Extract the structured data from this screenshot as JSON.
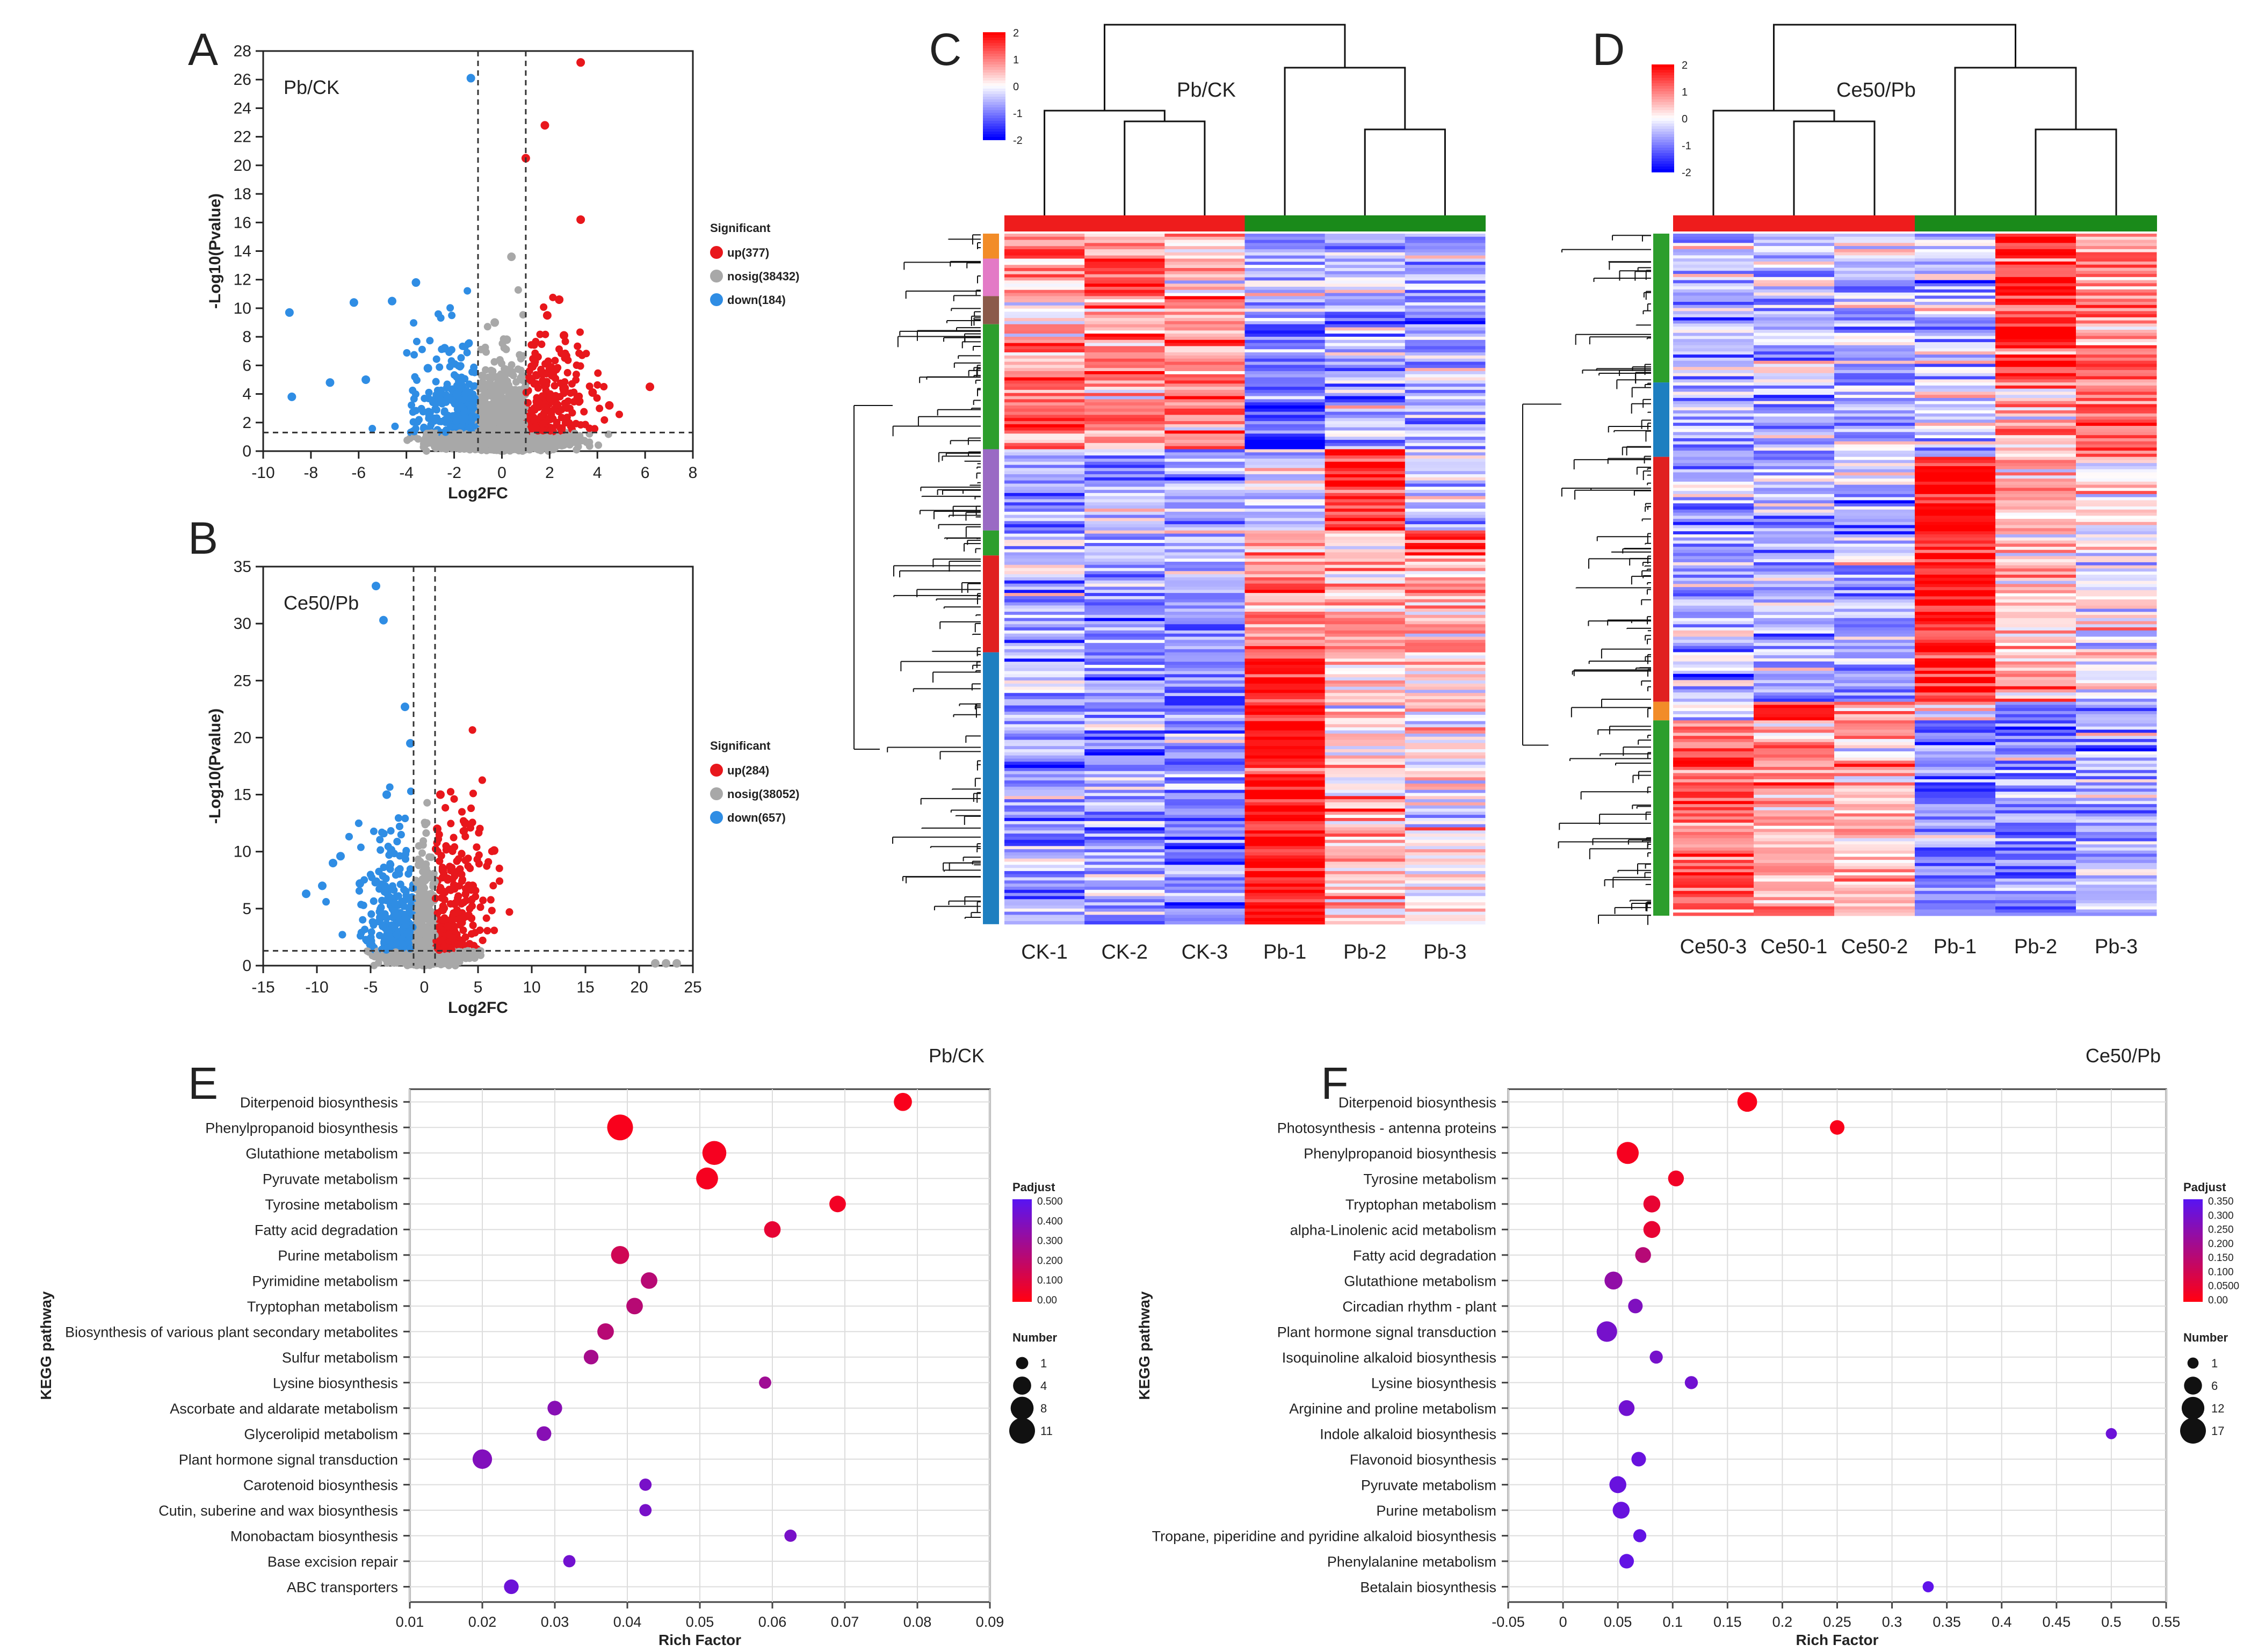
{
  "panels": {
    "A": "A",
    "B": "B",
    "C": "C",
    "D": "D",
    "E": "E",
    "F": "F"
  },
  "colors": {
    "up": "#e8171c",
    "nosig": "#a8a8a8",
    "down": "#2f8de4",
    "heat_high": "#ff0000",
    "heat_mid": "#ffffff",
    "heat_low": "#0000ff",
    "group_red": "#ee1c1c",
    "group_green": "#1a8a1a"
  },
  "chart_data": [
    {
      "id": "A",
      "type": "scatter",
      "subtype": "volcano",
      "title": "Pb/CK",
      "xlabel": "Log2FC",
      "ylabel": "-Log10(Pvalue)",
      "xlim": [
        -10,
        8
      ],
      "ylim": [
        0,
        28
      ],
      "xticks": [
        -10,
        -8,
        -6,
        -4,
        -2,
        0,
        2,
        4,
        6,
        8
      ],
      "yticks": [
        0,
        2,
        4,
        6,
        8,
        10,
        12,
        14,
        16,
        18,
        20,
        22,
        24,
        26,
        28
      ],
      "fc_threshold": 1,
      "p_threshold_line": 1.3,
      "legend_title": "Significant",
      "legend": [
        {
          "key": "up",
          "label": "up(377)"
        },
        {
          "key": "nosig",
          "label": "nosig(38432)"
        },
        {
          "key": "down",
          "label": "down(184)"
        }
      ],
      "highlight_points": {
        "up": [
          [
            3.3,
            27.2
          ],
          [
            1.8,
            22.8
          ],
          [
            1.0,
            20.5
          ],
          [
            3.3,
            16.2
          ],
          [
            2.4,
            10.6
          ],
          [
            1.9,
            9.5
          ],
          [
            2.6,
            8.1
          ],
          [
            6.2,
            4.5
          ],
          [
            4.5,
            3.2
          ],
          [
            3.8,
            4.1
          ]
        ],
        "down": [
          [
            -1.3,
            26.1
          ],
          [
            -8.9,
            9.7
          ],
          [
            -6.2,
            10.4
          ],
          [
            -3.6,
            11.8
          ],
          [
            -4.6,
            10.5
          ],
          [
            -8.8,
            3.8
          ],
          [
            -7.2,
            4.8
          ],
          [
            -5.7,
            5.0
          ],
          [
            -2.4,
            7.2
          ],
          [
            -3.1,
            5.8
          ]
        ],
        "nosig": [
          [
            0.4,
            13.6
          ],
          [
            -0.3,
            9.0
          ],
          [
            0.2,
            7.8
          ]
        ]
      }
    },
    {
      "id": "B",
      "type": "scatter",
      "subtype": "volcano",
      "title": "Ce50/Pb",
      "xlabel": "Log2FC",
      "ylabel": "-Log10(Pvalue)",
      "xlim": [
        -15,
        25
      ],
      "ylim": [
        0,
        35
      ],
      "xticks": [
        -15,
        -10,
        -5,
        0,
        5,
        10,
        15,
        20,
        25
      ],
      "yticks": [
        0,
        5,
        10,
        15,
        20,
        25,
        30,
        35
      ],
      "fc_threshold": 1,
      "p_threshold_line": 1.3,
      "legend_title": "Significant",
      "legend": [
        {
          "key": "up",
          "label": "up(284)"
        },
        {
          "key": "nosig",
          "label": "nosig(38052)"
        },
        {
          "key": "down",
          "label": "down(657)"
        }
      ],
      "highlight_points": {
        "up": [
          [
            1.5,
            15.0
          ],
          [
            6.5,
            10.1
          ],
          [
            3.8,
            12.5
          ],
          [
            4.5,
            7.0
          ],
          [
            1.2,
            12.0
          ]
        ],
        "down": [
          [
            -4.5,
            33.3
          ],
          [
            -3.8,
            30.3
          ],
          [
            -1.8,
            22.7
          ],
          [
            -1.3,
            19.5
          ],
          [
            -8.5,
            9.0
          ],
          [
            -7.8,
            9.6
          ],
          [
            -9.5,
            7.0
          ],
          [
            -11.0,
            6.3
          ],
          [
            -6.0,
            7.2
          ],
          [
            -3.5,
            15.0
          ]
        ],
        "nosig": [
          [
            21.5,
            0.2
          ],
          [
            22.5,
            0.2
          ],
          [
            23.5,
            0.2
          ]
        ]
      }
    },
    {
      "id": "C",
      "type": "heatmap",
      "title": "Pb/CK",
      "columns": [
        "CK-1",
        "CK-2",
        "CK-3",
        "Pb-1",
        "Pb-2",
        "Pb-3"
      ],
      "column_groups": [
        "red",
        "red",
        "red",
        "green",
        "green",
        "green"
      ],
      "colorbar_ticks": [
        "2",
        "1",
        "0",
        "-1",
        "-2"
      ],
      "colorbar_range": [
        -2,
        2
      ],
      "row_clusters": [
        {
          "color": "#f28c28",
          "frac": 0.035,
          "values": [
            1.6,
            0.6,
            0.2,
            -0.9,
            -0.5,
            -0.6
          ]
        },
        {
          "color": "#e37ac6",
          "frac": 0.055,
          "values": [
            0.3,
            1.8,
            0.4,
            -0.7,
            -0.8,
            -0.6
          ]
        },
        {
          "color": "#8b5a4a",
          "frac": 0.04,
          "values": [
            0.1,
            0.6,
            1.3,
            -0.6,
            -0.8,
            -0.8
          ]
        },
        {
          "color": "#2d9e2d",
          "frac": 0.18,
          "values": [
            1.0,
            0.9,
            0.9,
            -1.3,
            -0.5,
            -0.9
          ]
        },
        {
          "color": "#9a6ac4",
          "frac": 0.12,
          "values": [
            -0.8,
            -0.7,
            -0.7,
            -0.5,
            1.8,
            -0.3
          ]
        },
        {
          "color": "#2d9e2d",
          "frac": 0.035,
          "values": [
            -0.7,
            -0.6,
            -0.5,
            0.6,
            0.3,
            1.7
          ]
        },
        {
          "color": "#e02020",
          "frac": 0.14,
          "values": [
            -0.6,
            -1.1,
            -0.8,
            0.9,
            0.9,
            0.5
          ]
        },
        {
          "color": "#1e7fc0",
          "frac": 0.395,
          "values": [
            -0.7,
            -0.7,
            -0.9,
            1.8,
            0.4,
            0.1
          ]
        }
      ]
    },
    {
      "id": "D",
      "type": "heatmap",
      "title": "Ce50/Pb",
      "columns": [
        "Ce50-3",
        "Ce50-1",
        "Ce50-2",
        "Pb-1",
        "Pb-2",
        "Pb-3"
      ],
      "column_groups": [
        "red",
        "red",
        "red",
        "green",
        "green",
        "green"
      ],
      "colorbar_ticks": [
        "2",
        "1",
        "0",
        "-1",
        "-2"
      ],
      "colorbar_range": [
        -2,
        2
      ],
      "row_clusters": [
        {
          "color": "#2d9e2d",
          "frac": 0.22,
          "values": [
            -0.6,
            -0.5,
            -0.6,
            -0.4,
            1.8,
            0.9
          ]
        },
        {
          "color": "#1e7fc0",
          "frac": 0.11,
          "values": [
            -0.5,
            -0.6,
            -0.7,
            -0.3,
            0.6,
            1.4
          ]
        },
        {
          "color": "#e02020",
          "frac": 0.36,
          "values": [
            -0.6,
            -0.7,
            -0.7,
            1.9,
            0.5,
            0.0
          ]
        },
        {
          "color": "#f28c28",
          "frac": 0.025,
          "values": [
            -0.3,
            1.9,
            0.8,
            -0.6,
            -0.6,
            -0.6
          ]
        },
        {
          "color": "#2d9e2d",
          "frac": 0.285,
          "values": [
            1.1,
            0.7,
            0.6,
            -1.0,
            -0.8,
            -0.6
          ]
        }
      ]
    },
    {
      "id": "E",
      "type": "scatter",
      "subtype": "bubble",
      "title": "Pb/CK",
      "xlabel": "Rich Factor",
      "ylabel": "KEGG pathway",
      "xlim": [
        0.01,
        0.09
      ],
      "xticks": [
        0.01,
        0.02,
        0.03,
        0.04,
        0.05,
        0.06,
        0.07,
        0.08,
        0.09
      ],
      "color_legend_title": "Padjust",
      "color_ticks": [
        "0.500",
        "0.400",
        "0.300",
        "0.200",
        "0.100",
        "0.00"
      ],
      "color_range": [
        0,
        0.55
      ],
      "size_legend_title": "Number",
      "size_legend": [
        1,
        4,
        8,
        11
      ],
      "points": [
        {
          "pathway": "Diterpenoid biosynthesis",
          "rich": 0.078,
          "number": 4,
          "padj": 0.02
        },
        {
          "pathway": "Phenylpropanoid biosynthesis",
          "rich": 0.039,
          "number": 11,
          "padj": 0.02
        },
        {
          "pathway": "Glutathione metabolism",
          "rich": 0.052,
          "number": 9,
          "padj": 0.03
        },
        {
          "pathway": "Pyruvate metabolism",
          "rich": 0.051,
          "number": 7,
          "padj": 0.03
        },
        {
          "pathway": "Tyrosine metabolism",
          "rich": 0.069,
          "number": 3,
          "padj": 0.04
        },
        {
          "pathway": "Fatty acid degradation",
          "rich": 0.06,
          "number": 3,
          "padj": 0.08
        },
        {
          "pathway": "Purine metabolism",
          "rich": 0.039,
          "number": 4,
          "padj": 0.16
        },
        {
          "pathway": "Pyrimidine metabolism",
          "rich": 0.043,
          "number": 3,
          "padj": 0.24
        },
        {
          "pathway": "Tryptophan metabolism",
          "rich": 0.041,
          "number": 3,
          "padj": 0.24
        },
        {
          "pathway": "Biosynthesis of various plant secondary metabolites",
          "rich": 0.037,
          "number": 3,
          "padj": 0.24
        },
        {
          "pathway": "Sulfur metabolism",
          "rich": 0.035,
          "number": 2,
          "padj": 0.3
        },
        {
          "pathway": "Lysine biosynthesis",
          "rich": 0.059,
          "number": 1,
          "padj": 0.32
        },
        {
          "pathway": "Ascorbate and aldarate metabolism",
          "rich": 0.03,
          "number": 2,
          "padj": 0.4
        },
        {
          "pathway": "Glycerolipid metabolism",
          "rich": 0.0285,
          "number": 2,
          "padj": 0.4
        },
        {
          "pathway": "Plant hormone signal transduction",
          "rich": 0.02,
          "number": 5,
          "padj": 0.42
        },
        {
          "pathway": "Carotenoid biosynthesis",
          "rich": 0.0425,
          "number": 1,
          "padj": 0.45
        },
        {
          "pathway": "Cutin, suberine and wax biosynthesis",
          "rich": 0.0425,
          "number": 1,
          "padj": 0.45
        },
        {
          "pathway": "Monobactam biosynthesis",
          "rich": 0.0625,
          "number": 1,
          "padj": 0.45
        },
        {
          "pathway": "Base excision repair",
          "rich": 0.032,
          "number": 1,
          "padj": 0.47
        },
        {
          "pathway": "ABC transporters",
          "rich": 0.024,
          "number": 2,
          "padj": 0.49
        }
      ]
    },
    {
      "id": "F",
      "type": "scatter",
      "subtype": "bubble",
      "title": "Ce50/Pb",
      "xlabel": "Rich Factor",
      "ylabel": "KEGG pathway",
      "xlim": [
        -0.05,
        0.55
      ],
      "xticks": [
        -0.05,
        0,
        0.05,
        0.1,
        0.15,
        0.2,
        0.25,
        0.3,
        0.35,
        0.4,
        0.45,
        0.5,
        0.55
      ],
      "xtick_labels": [
        "-0.05",
        "0",
        "0.05",
        "0.1",
        "0.15",
        "0.2",
        "0.25",
        "0.3",
        "0.35",
        "0.4",
        "0.45",
        "0.5",
        "0.55"
      ],
      "color_legend_title": "Padjust",
      "color_ticks": [
        "0.350",
        "0.300",
        "0.250",
        "0.200",
        "0.150",
        "0.100",
        "0.0500",
        "0.00"
      ],
      "color_range": [
        0,
        0.36
      ],
      "size_legend_title": "Number",
      "size_legend": [
        1,
        6,
        12,
        17
      ],
      "points": [
        {
          "pathway": "Diterpenoid biosynthesis",
          "rich": 0.168,
          "number": 8,
          "padj": 0.01
        },
        {
          "pathway": "Photosynthesis - antenna proteins",
          "rich": 0.25,
          "number": 3,
          "padj": 0.01
        },
        {
          "pathway": "Phenylpropanoid biosynthesis",
          "rich": 0.059,
          "number": 11,
          "padj": 0.02
        },
        {
          "pathway": "Tyrosine metabolism",
          "rich": 0.103,
          "number": 4,
          "padj": 0.03
        },
        {
          "pathway": "Tryptophan metabolism",
          "rich": 0.081,
          "number": 5,
          "padj": 0.05
        },
        {
          "pathway": "alpha-Linolenic acid metabolism",
          "rich": 0.081,
          "number": 5,
          "padj": 0.05
        },
        {
          "pathway": "Fatty acid degradation",
          "rich": 0.073,
          "number": 4,
          "padj": 0.16
        },
        {
          "pathway": "Glutathione metabolism",
          "rich": 0.046,
          "number": 6,
          "padj": 0.24
        },
        {
          "pathway": "Circadian rhythm - plant",
          "rich": 0.066,
          "number": 3,
          "padj": 0.28
        },
        {
          "pathway": "Plant hormone signal transduction",
          "rich": 0.04,
          "number": 9,
          "padj": 0.3
        },
        {
          "pathway": "Isoquinoline alkaloid biosynthesis",
          "rich": 0.085,
          "number": 2,
          "padj": 0.3
        },
        {
          "pathway": "Lysine biosynthesis",
          "rich": 0.117,
          "number": 2,
          "padj": 0.31
        },
        {
          "pathway": "Arginine and proline metabolism",
          "rich": 0.058,
          "number": 4,
          "padj": 0.31
        },
        {
          "pathway": "Indole alkaloid biosynthesis",
          "rich": 0.5,
          "number": 1,
          "padj": 0.32
        },
        {
          "pathway": "Flavonoid biosynthesis",
          "rich": 0.069,
          "number": 3,
          "padj": 0.33
        },
        {
          "pathway": "Pyruvate metabolism",
          "rich": 0.05,
          "number": 5,
          "padj": 0.33
        },
        {
          "pathway": "Purine metabolism",
          "rich": 0.053,
          "number": 5,
          "padj": 0.33
        },
        {
          "pathway": "Tropane, piperidine and pyridine alkaloid biosynthesis",
          "rich": 0.07,
          "number": 2,
          "padj": 0.34
        },
        {
          "pathway": "Phenylalanine metabolism",
          "rich": 0.058,
          "number": 3,
          "padj": 0.34
        },
        {
          "pathway": "Betalain biosynthesis",
          "rich": 0.333,
          "number": 1,
          "padj": 0.35
        }
      ]
    }
  ]
}
